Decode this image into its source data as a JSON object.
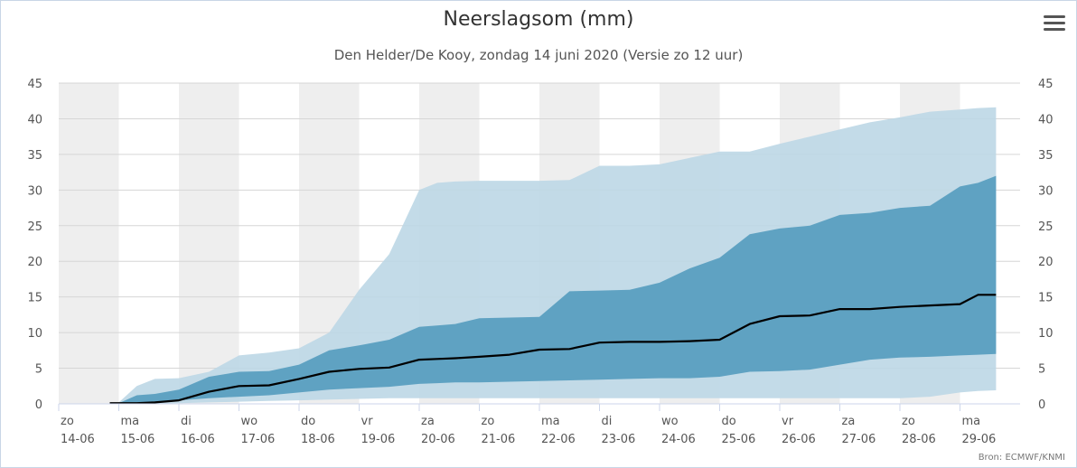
{
  "chart_data": {
    "type": "area",
    "title": "Neerslagsom (mm)",
    "subtitle": "Den Helder/De Kooy, zondag 14 juni 2020 (Versie zo 12 uur)",
    "credit": "Bron: ECMWF/KNMI",
    "ylim": [
      0,
      45
    ],
    "yticks": [
      0,
      5,
      10,
      15,
      20,
      25,
      30,
      35,
      40,
      45
    ],
    "days": [
      {
        "day": "zo",
        "date": "14-06"
      },
      {
        "day": "ma",
        "date": "15-06"
      },
      {
        "day": "di",
        "date": "16-06"
      },
      {
        "day": "wo",
        "date": "17-06"
      },
      {
        "day": "do",
        "date": "18-06"
      },
      {
        "day": "vr",
        "date": "19-06"
      },
      {
        "day": "za",
        "date": "20-06"
      },
      {
        "day": "zo",
        "date": "21-06"
      },
      {
        "day": "ma",
        "date": "22-06"
      },
      {
        "day": "di",
        "date": "23-06"
      },
      {
        "day": "wo",
        "date": "24-06"
      },
      {
        "day": "do",
        "date": "25-06"
      },
      {
        "day": "vr",
        "date": "26-06"
      },
      {
        "day": "za",
        "date": "27-06"
      },
      {
        "day": "zo",
        "date": "28-06"
      },
      {
        "day": "ma",
        "date": "29-06"
      }
    ],
    "x": [
      0.85,
      1.0,
      1.3,
      1.6,
      2.0,
      2.5,
      3.0,
      3.5,
      4.0,
      4.5,
      5.0,
      5.5,
      6.0,
      6.3,
      6.6,
      7.0,
      7.5,
      8.0,
      8.5,
      9.0,
      9.5,
      10.0,
      10.5,
      11.0,
      11.5,
      12.0,
      12.5,
      13.0,
      13.5,
      14.0,
      14.5,
      15.0,
      15.3,
      15.6
    ],
    "series": [
      {
        "name": "band-outer-upper",
        "values": [
          0,
          0.2,
          2.5,
          3.5,
          3.6,
          4.5,
          6.8,
          7.2,
          7.8,
          10.0,
          16.0,
          21.0,
          30.0,
          31.0,
          31.2,
          31.3,
          31.3,
          31.3,
          31.4,
          33.4,
          33.4,
          33.6,
          34.5,
          35.4,
          35.4,
          36.5,
          37.5,
          38.5,
          39.5,
          40.2,
          41.0,
          41.3,
          41.5,
          41.6
        ]
      },
      {
        "name": "band-inner-upper",
        "values": [
          0,
          0.1,
          1.2,
          1.4,
          2.0,
          3.8,
          4.5,
          4.6,
          5.5,
          7.5,
          8.2,
          9.0,
          10.8,
          11.0,
          11.2,
          12.0,
          12.1,
          12.2,
          15.8,
          15.9,
          16.0,
          17.0,
          19.0,
          20.5,
          23.8,
          24.6,
          25.0,
          26.5,
          26.8,
          27.5,
          27.8,
          30.5,
          31.0,
          32.0
        ]
      },
      {
        "name": "median",
        "values": [
          0.1,
          0.1,
          0.1,
          0.2,
          0.5,
          1.7,
          2.5,
          2.6,
          3.5,
          4.5,
          4.9,
          5.1,
          6.2,
          6.3,
          6.4,
          6.6,
          6.9,
          7.6,
          7.7,
          8.6,
          8.7,
          8.7,
          8.8,
          9.0,
          11.2,
          12.3,
          12.4,
          13.3,
          13.3,
          13.6,
          13.8,
          14.0,
          15.3,
          15.3
        ]
      },
      {
        "name": "band-inner-lower",
        "values": [
          0,
          0,
          0,
          0.2,
          0.5,
          0.8,
          1.0,
          1.2,
          1.6,
          2.0,
          2.2,
          2.4,
          2.8,
          2.9,
          3.0,
          3.0,
          3.1,
          3.2,
          3.3,
          3.4,
          3.5,
          3.6,
          3.6,
          3.8,
          4.5,
          4.6,
          4.8,
          5.5,
          6.2,
          6.5,
          6.6,
          6.8,
          6.9,
          7.0
        ]
      },
      {
        "name": "band-outer-lower",
        "values": [
          0,
          0,
          0,
          0,
          0.1,
          0.2,
          0.3,
          0.4,
          0.5,
          0.6,
          0.7,
          0.8,
          0.8,
          0.8,
          0.8,
          0.8,
          0.8,
          0.8,
          0.8,
          0.8,
          0.8,
          0.8,
          0.8,
          0.8,
          0.8,
          0.8,
          0.8,
          0.8,
          0.8,
          0.8,
          1.0,
          1.6,
          1.8,
          1.9
        ]
      }
    ],
    "colors": {
      "outer_band": "#bdd7e6",
      "inner_band": "#5a9fc0",
      "median_line": "#000000",
      "stripe_shade": "#eeeeee",
      "gridline": "#d6d6d6",
      "axis_text": "#555555"
    }
  }
}
